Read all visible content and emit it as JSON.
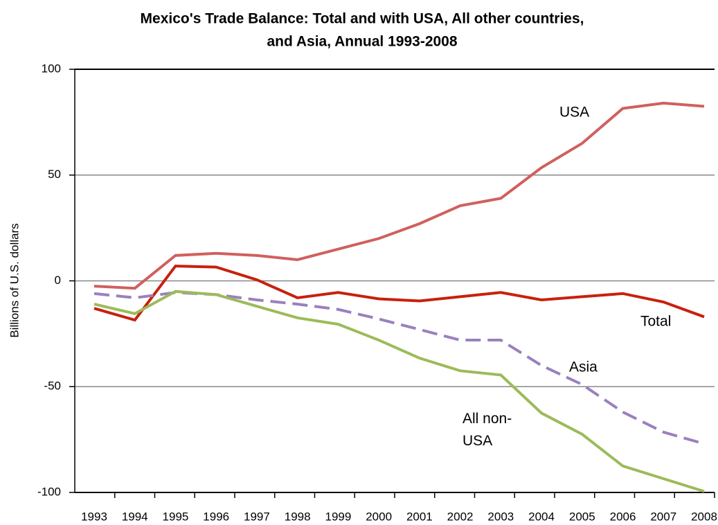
{
  "chart_data": {
    "type": "line",
    "title": [
      "Mexico's Trade Balance: Total and with USA, All other countries,",
      "and Asia, Annual 1993-2008"
    ],
    "y_label": "Billions of U.S. dollars",
    "categories": [
      "1993",
      "1994",
      "1995",
      "1996",
      "1997",
      "1998",
      "1999",
      "2000",
      "2001",
      "2002",
      "2003",
      "2004",
      "2005",
      "2006",
      "2007",
      "2008"
    ],
    "ylim": [
      -100,
      100
    ],
    "yticks": [
      -100,
      -50,
      0,
      50,
      100
    ],
    "grid": true,
    "series": [
      {
        "name": "USA",
        "color": "#d0605e",
        "dash": false,
        "values": [
          -2.5,
          -3.5,
          12,
          13,
          12,
          10,
          15,
          20,
          27,
          35.5,
          39,
          53.5,
          65,
          81.5,
          84,
          82.5
        ]
      },
      {
        "name": "Total",
        "color": "#c8200e",
        "dash": false,
        "values": [
          -13,
          -18.5,
          7,
          6.5,
          0.5,
          -8,
          -5.5,
          -8.5,
          -9.5,
          -7.5,
          -5.5,
          -9,
          -7.5,
          -6,
          -10,
          -17
        ]
      },
      {
        "name": "Asia",
        "color": "#9a80bf",
        "dash": true,
        "values": [
          -6,
          -8,
          -5.5,
          -6.5,
          -9,
          -11,
          -13.5,
          -18,
          -23,
          -28,
          -28,
          -40,
          -49,
          -62,
          -71.5,
          -77
        ]
      },
      {
        "name": "All non-USA",
        "color": "#9bbb59",
        "dash": false,
        "values": [
          -11,
          -15.5,
          -5,
          -6.5,
          -12,
          -17.5,
          -20.5,
          -28,
          -36.5,
          -42.5,
          -44.5,
          -62.5,
          -72.5,
          -87.5,
          -93.5,
          -99.5
        ]
      }
    ]
  }
}
